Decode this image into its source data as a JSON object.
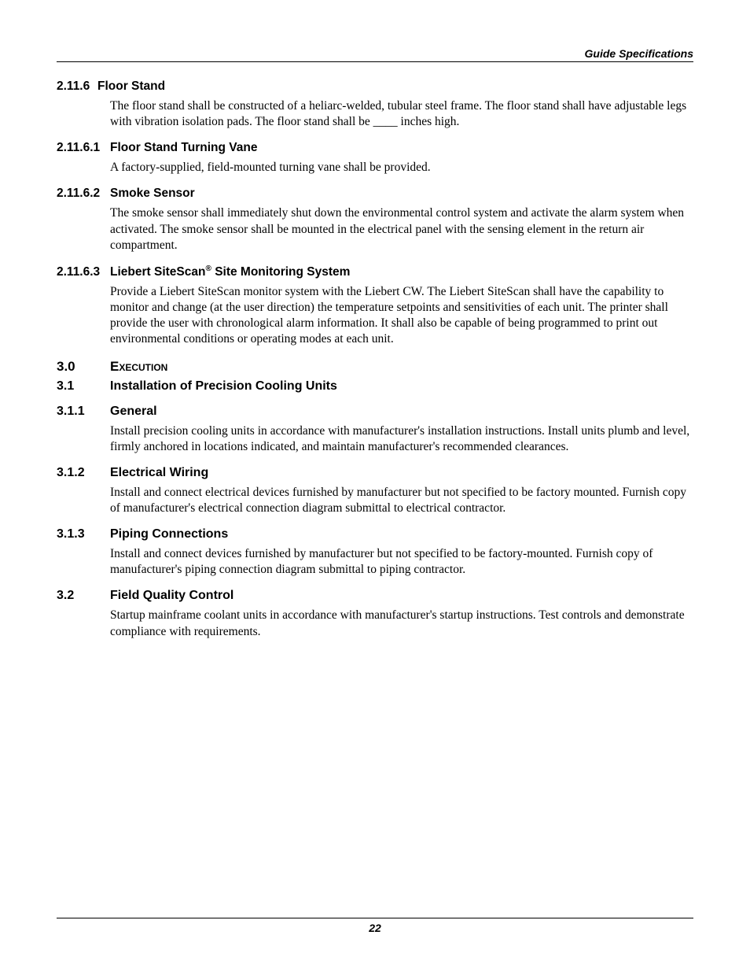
{
  "header": {
    "running": "Guide Specifications"
  },
  "sections": [
    {
      "num": "2.11.6",
      "title": "Floor Stand",
      "level": "tight",
      "body": "The floor stand shall be constructed of a heliarc-welded, tubular steel frame. The floor stand shall have adjustable legs with vibration isolation pads. The floor stand shall be ____ inches high."
    },
    {
      "num": "2.11.6.1",
      "title": "Floor Stand Turning Vane",
      "level": "tight",
      "body": "A factory-supplied, field-mounted turning vane shall be provided."
    },
    {
      "num": "2.11.6.2",
      "title": "Smoke Sensor",
      "level": "tight",
      "body": "The smoke sensor shall immediately shut down the environmental control system and activate the alarm system when activated. The smoke sensor shall be mounted in the electrical panel with the sensing element in the return air compartment."
    },
    {
      "num": "2.11.6.3",
      "title_prefix": "Liebert SiteScan",
      "title_suffix": " Site Monitoring System",
      "level": "tight-reg",
      "body": "Provide a Liebert SiteScan monitor system with the Liebert CW. The Liebert SiteScan shall have the capability to monitor and change (at the user direction) the temperature setpoints and sensitivities of each unit. The printer shall provide the user with chronological alarm information. It shall also be capable of being programmed to print out environmental conditions or operating modes at each unit."
    },
    {
      "num": "3.0",
      "title": "Execution",
      "level": "major",
      "body": null
    },
    {
      "num": "3.1",
      "title": "Installation of Precision Cooling Units",
      "level": "sub",
      "body": null
    },
    {
      "num": "3.1.1",
      "title": "General",
      "level": "sub",
      "body": "Install precision cooling units in accordance with manufacturer's installation instructions. Install units plumb and level, firmly anchored in locations indicated, and maintain manufacturer's recommended clearances."
    },
    {
      "num": "3.1.2",
      "title": "Electrical Wiring",
      "level": "sub",
      "body": "Install and connect electrical devices furnished by manufacturer but not specified to be factory mounted. Furnish copy of manufacturer's electrical connection diagram submittal to electrical contractor."
    },
    {
      "num": "3.1.3",
      "title": "Piping Connections",
      "level": "sub",
      "body": "Install and connect devices furnished by manufacturer but not specified to be factory-mounted. Furnish copy of manufacturer's piping connection diagram submittal to piping contractor."
    },
    {
      "num": "3.2",
      "title": "Field Quality Control",
      "level": "sub",
      "body": "Startup mainframe coolant units in accordance with manufacturer's startup instructions. Test controls and demonstrate compliance with requirements."
    }
  ],
  "footer": {
    "page_number": "22"
  }
}
